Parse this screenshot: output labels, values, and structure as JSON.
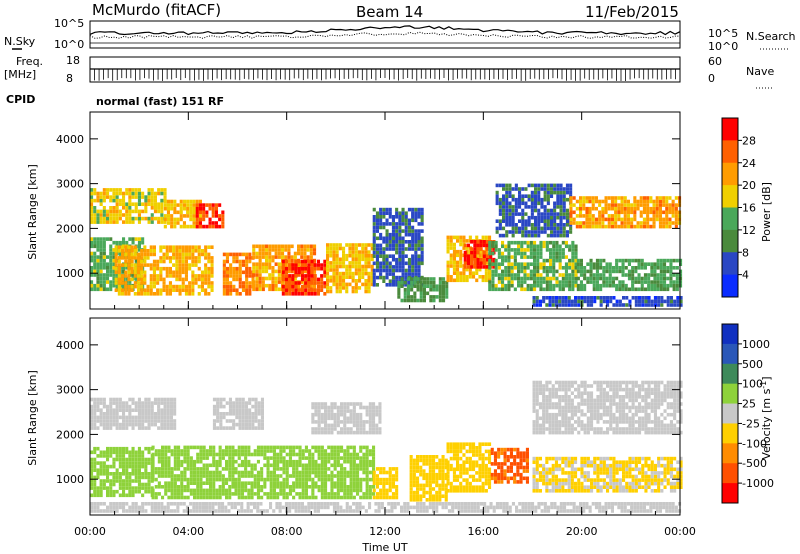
{
  "header": {
    "station": "McMurdo (fitACF)",
    "beam": "Beam 14",
    "date": "11/Feb/2015"
  },
  "noise_panel": {
    "left_label": "N.Sky",
    "right_label": "N.Search",
    "left_ticks": [
      "10^5",
      "10^0"
    ],
    "right_ticks": [
      "10^5",
      "10^0"
    ]
  },
  "freq_panel": {
    "left_label_1": "Freq.",
    "left_label_2": "[MHz]",
    "right_label": "Nave",
    "left_ticks": [
      "18",
      "8"
    ],
    "right_ticks": [
      "60",
      "0"
    ]
  },
  "cpid": {
    "label": "CPID",
    "text": "normal (fast) 151 RF"
  },
  "colors": {
    "power_scale": [
      "#0a2cff",
      "#2a47c4",
      "#4a8a3c",
      "#4aa85a",
      "#f0d000",
      "#ff9c00",
      "#ff6000",
      "#ff0000"
    ],
    "velocity_scale": [
      "#ff0000",
      "#ff5000",
      "#ff8c00",
      "#ffd000",
      "#c8c8c8",
      "#8ed23a",
      "#3e8a5a",
      "#2a57b8",
      "#1030c0"
    ]
  },
  "chart_data": [
    {
      "type": "heatmap",
      "title": "",
      "xlabel": "",
      "ylabel": "Slant Range [km]",
      "x_ticks": [
        "00:00",
        "04:00",
        "08:00",
        "12:00",
        "16:00",
        "20:00",
        "00:00"
      ],
      "y_ticks": [
        1000,
        2000,
        3000,
        4000
      ],
      "ylim": [
        200,
        4600
      ],
      "colorbar": {
        "label": "Power [dB]",
        "ticks": [
          4,
          8,
          12,
          16,
          20,
          24,
          28
        ],
        "range": [
          0,
          32
        ]
      },
      "regions": [
        {
          "t0": 0.0,
          "t1": 2.2,
          "r0": 600,
          "r1": 1800,
          "value": 14
        },
        {
          "t0": 0.0,
          "t1": 3.0,
          "r0": 2100,
          "r1": 2900,
          "value": 18
        },
        {
          "t0": 1.0,
          "t1": 5.0,
          "r0": 500,
          "r1": 1600,
          "value": 21
        },
        {
          "t0": 3.0,
          "t1": 4.5,
          "r0": 2000,
          "r1": 2600,
          "value": 19
        },
        {
          "t0": 4.3,
          "t1": 5.4,
          "r0": 2000,
          "r1": 2500,
          "value": 28
        },
        {
          "t0": 5.4,
          "t1": 6.6,
          "r0": 500,
          "r1": 1400,
          "value": 24
        },
        {
          "t0": 6.6,
          "t1": 9.2,
          "r0": 600,
          "r1": 1600,
          "value": 22
        },
        {
          "t0": 7.8,
          "t1": 9.6,
          "r0": 500,
          "r1": 1300,
          "value": 28
        },
        {
          "t0": 9.6,
          "t1": 11.5,
          "r0": 550,
          "r1": 1600,
          "value": 20
        },
        {
          "t0": 11.5,
          "t1": 13.5,
          "r0": 700,
          "r1": 2400,
          "value": 7
        },
        {
          "t0": 12.5,
          "t1": 14.5,
          "r0": 350,
          "r1": 900,
          "value": 11
        },
        {
          "t0": 14.5,
          "t1": 16.2,
          "r0": 800,
          "r1": 1800,
          "value": 20
        },
        {
          "t0": 15.2,
          "t1": 16.4,
          "r0": 1100,
          "r1": 1700,
          "value": 28
        },
        {
          "t0": 16.2,
          "t1": 19.8,
          "r0": 600,
          "r1": 1700,
          "value": 14
        },
        {
          "t0": 16.5,
          "t1": 19.5,
          "r0": 1800,
          "r1": 3000,
          "value": 7
        },
        {
          "t0": 19.5,
          "t1": 24.0,
          "r0": 2000,
          "r1": 2700,
          "value": 22
        },
        {
          "t0": 19.8,
          "t1": 24.0,
          "r0": 600,
          "r1": 1300,
          "value": 13
        },
        {
          "t0": 18.0,
          "t1": 24.0,
          "r0": 250,
          "r1": 450,
          "value": 6
        }
      ]
    },
    {
      "type": "heatmap",
      "title": "",
      "xlabel": "Time UT",
      "ylabel": "Slant Range [km]",
      "x_ticks": [
        "00:00",
        "04:00",
        "08:00",
        "12:00",
        "16:00",
        "20:00",
        "00:00"
      ],
      "y_ticks": [
        1000,
        2000,
        3000,
        4000
      ],
      "ylim": [
        200,
        4600
      ],
      "colorbar": {
        "label": "Velocity [m s^-1]",
        "ticks": [
          1000,
          500,
          100,
          25,
          -25,
          -100,
          -500,
          -1000
        ],
        "range": [
          -1200,
          1200
        ]
      },
      "regions": [
        {
          "t0": 0.0,
          "t1": 3.5,
          "r0": 2100,
          "r1": 2800,
          "value": 0
        },
        {
          "t0": 0.0,
          "t1": 2.5,
          "r0": 600,
          "r1": 1700,
          "value": 300
        },
        {
          "t0": 2.5,
          "t1": 11.5,
          "r0": 550,
          "r1": 1700,
          "value": 300
        },
        {
          "t0": 5.0,
          "t1": 7.0,
          "r0": 2100,
          "r1": 2800,
          "value": 0
        },
        {
          "t0": 9.0,
          "t1": 11.8,
          "r0": 2000,
          "r1": 2700,
          "value": 0
        },
        {
          "t0": 11.5,
          "t1": 12.5,
          "r0": 550,
          "r1": 1200,
          "value": -300
        },
        {
          "t0": 13.0,
          "t1": 14.5,
          "r0": 500,
          "r1": 1500,
          "value": -300
        },
        {
          "t0": 14.5,
          "t1": 16.3,
          "r0": 700,
          "r1": 1800,
          "value": -300
        },
        {
          "t0": 16.3,
          "t1": 17.8,
          "r0": 900,
          "r1": 1700,
          "value": -700
        },
        {
          "t0": 18.0,
          "t1": 24.0,
          "r0": 2000,
          "r1": 3200,
          "value": 0
        },
        {
          "t0": 18.0,
          "t1": 24.0,
          "r0": 700,
          "r1": 1500,
          "value": -150
        },
        {
          "t0": 0.0,
          "t1": 24.0,
          "r0": 250,
          "r1": 450,
          "value": 60
        }
      ]
    }
  ]
}
